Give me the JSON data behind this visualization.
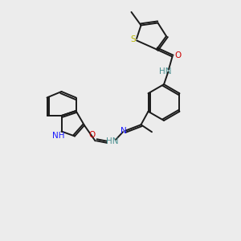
{
  "bg_color": "#ececec",
  "bond_color": "#1a1a1a",
  "atom_colors": {
    "N": "#1a1aff",
    "O": "#cc0000",
    "S": "#b8b800",
    "NH_teal": "#4a9090",
    "C": "#1a1a1a"
  },
  "lw": 1.4,
  "fs": 7.5
}
